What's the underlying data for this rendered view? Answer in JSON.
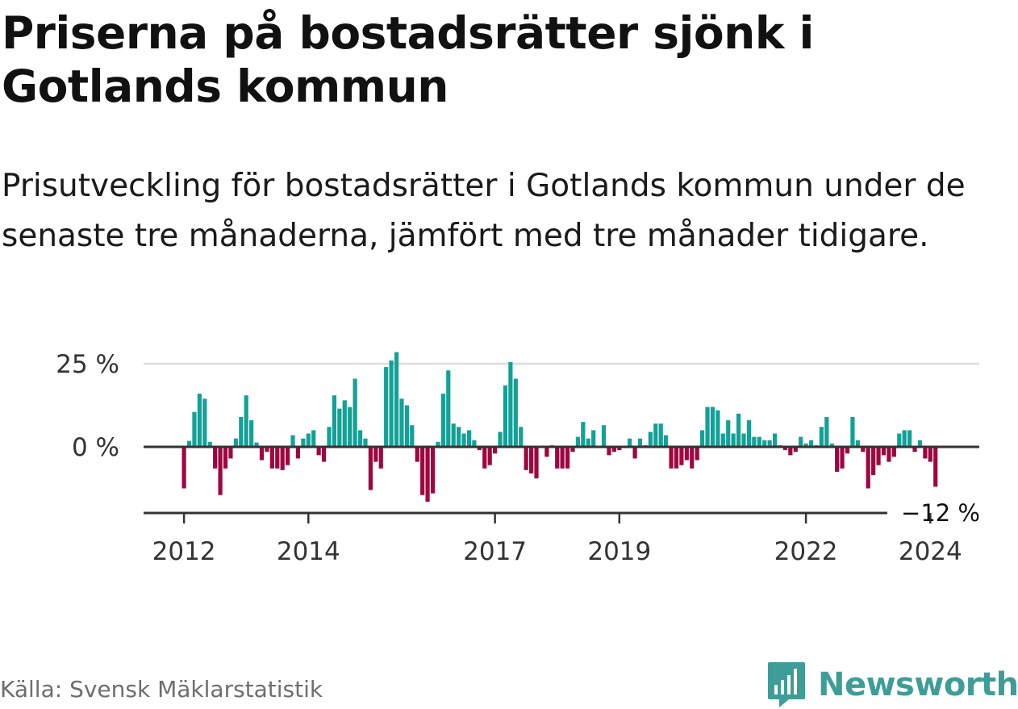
{
  "title": "Priserna på bostadsrätter sjönk i Gotlands kommun",
  "subtitle": "Prisutveckling för bostadsrätter i Gotlands kommun under de senaste tre månaderna, jämfört med tre månader tidigare.",
  "source": "Källa: Svensk Mäklarstatistik",
  "brand": {
    "name": "Newsworthy",
    "icon": "newsworthy-logo-icon"
  },
  "colors": {
    "positive": "#12a197",
    "negative": "#a00540",
    "grid": "#dddddd",
    "axis": "#333333",
    "text": "#111111",
    "source": "#6e6e6e",
    "brand": "#3f9d97"
  },
  "chart_data": {
    "type": "bar",
    "ylim": [
      -16,
      28
    ],
    "y_ticks": [
      {
        "value": 25,
        "label": "25 %"
      },
      {
        "value": 0,
        "label": "0 %"
      }
    ],
    "x_ticks": [
      {
        "year": 2012,
        "label": "2012"
      },
      {
        "year": 2014,
        "label": "2014"
      },
      {
        "year": 2017,
        "label": "2017"
      },
      {
        "year": 2019,
        "label": "2019"
      },
      {
        "year": 2022,
        "label": "2022"
      },
      {
        "year": 2024,
        "label": "2024"
      }
    ],
    "start": "2012-01",
    "end": "2024-07",
    "last_label": "−12 %",
    "grid": true,
    "values": [
      -12.5,
      1.8,
      10.5,
      16,
      14.5,
      1.5,
      -6.5,
      -14.5,
      -6.5,
      -3.5,
      2.5,
      9,
      15.5,
      8,
      1.3,
      -4,
      -1.5,
      -6.5,
      -6.5,
      -7,
      -5.5,
      3.5,
      -3.5,
      2.5,
      4,
      5,
      -2.5,
      -4.5,
      6,
      15.5,
      11.5,
      14,
      12,
      20.5,
      5,
      2.5,
      -13,
      -4.5,
      -6.5,
      24,
      26,
      28.5,
      14.5,
      12.5,
      6.5,
      -4.5,
      -14.5,
      -16.5,
      -14,
      1.5,
      16,
      23,
      7,
      6,
      4,
      5,
      2,
      -1,
      -6.5,
      -5.5,
      -2,
      4.5,
      18.5,
      25.5,
      20.5,
      6,
      -7,
      -8,
      -9.5,
      0,
      -3,
      0.5,
      -6.5,
      -6.5,
      -6.5,
      -1.5,
      3,
      7.5,
      2.5,
      5,
      0,
      6.5,
      -2.5,
      -1.5,
      -1,
      0,
      2.5,
      -3.5,
      2.5,
      0.5,
      4.5,
      7,
      7,
      3.5,
      -6.5,
      -6.5,
      -5.5,
      -4,
      -6.5,
      -4,
      5,
      12,
      12,
      11,
      4,
      8,
      4,
      10,
      4,
      8,
      3,
      3,
      2,
      2,
      4,
      0.5,
      -1,
      -2.5,
      -1.5,
      3,
      1,
      2,
      0.5,
      6,
      9,
      1,
      -7.5,
      -6.5,
      -2,
      9,
      2,
      -1.5,
      -12.5,
      -8.5,
      -5.5,
      -2.5,
      -4.5,
      -3,
      4,
      5,
      5,
      -1.5,
      2,
      -3.5,
      -4.5,
      -12
    ]
  }
}
